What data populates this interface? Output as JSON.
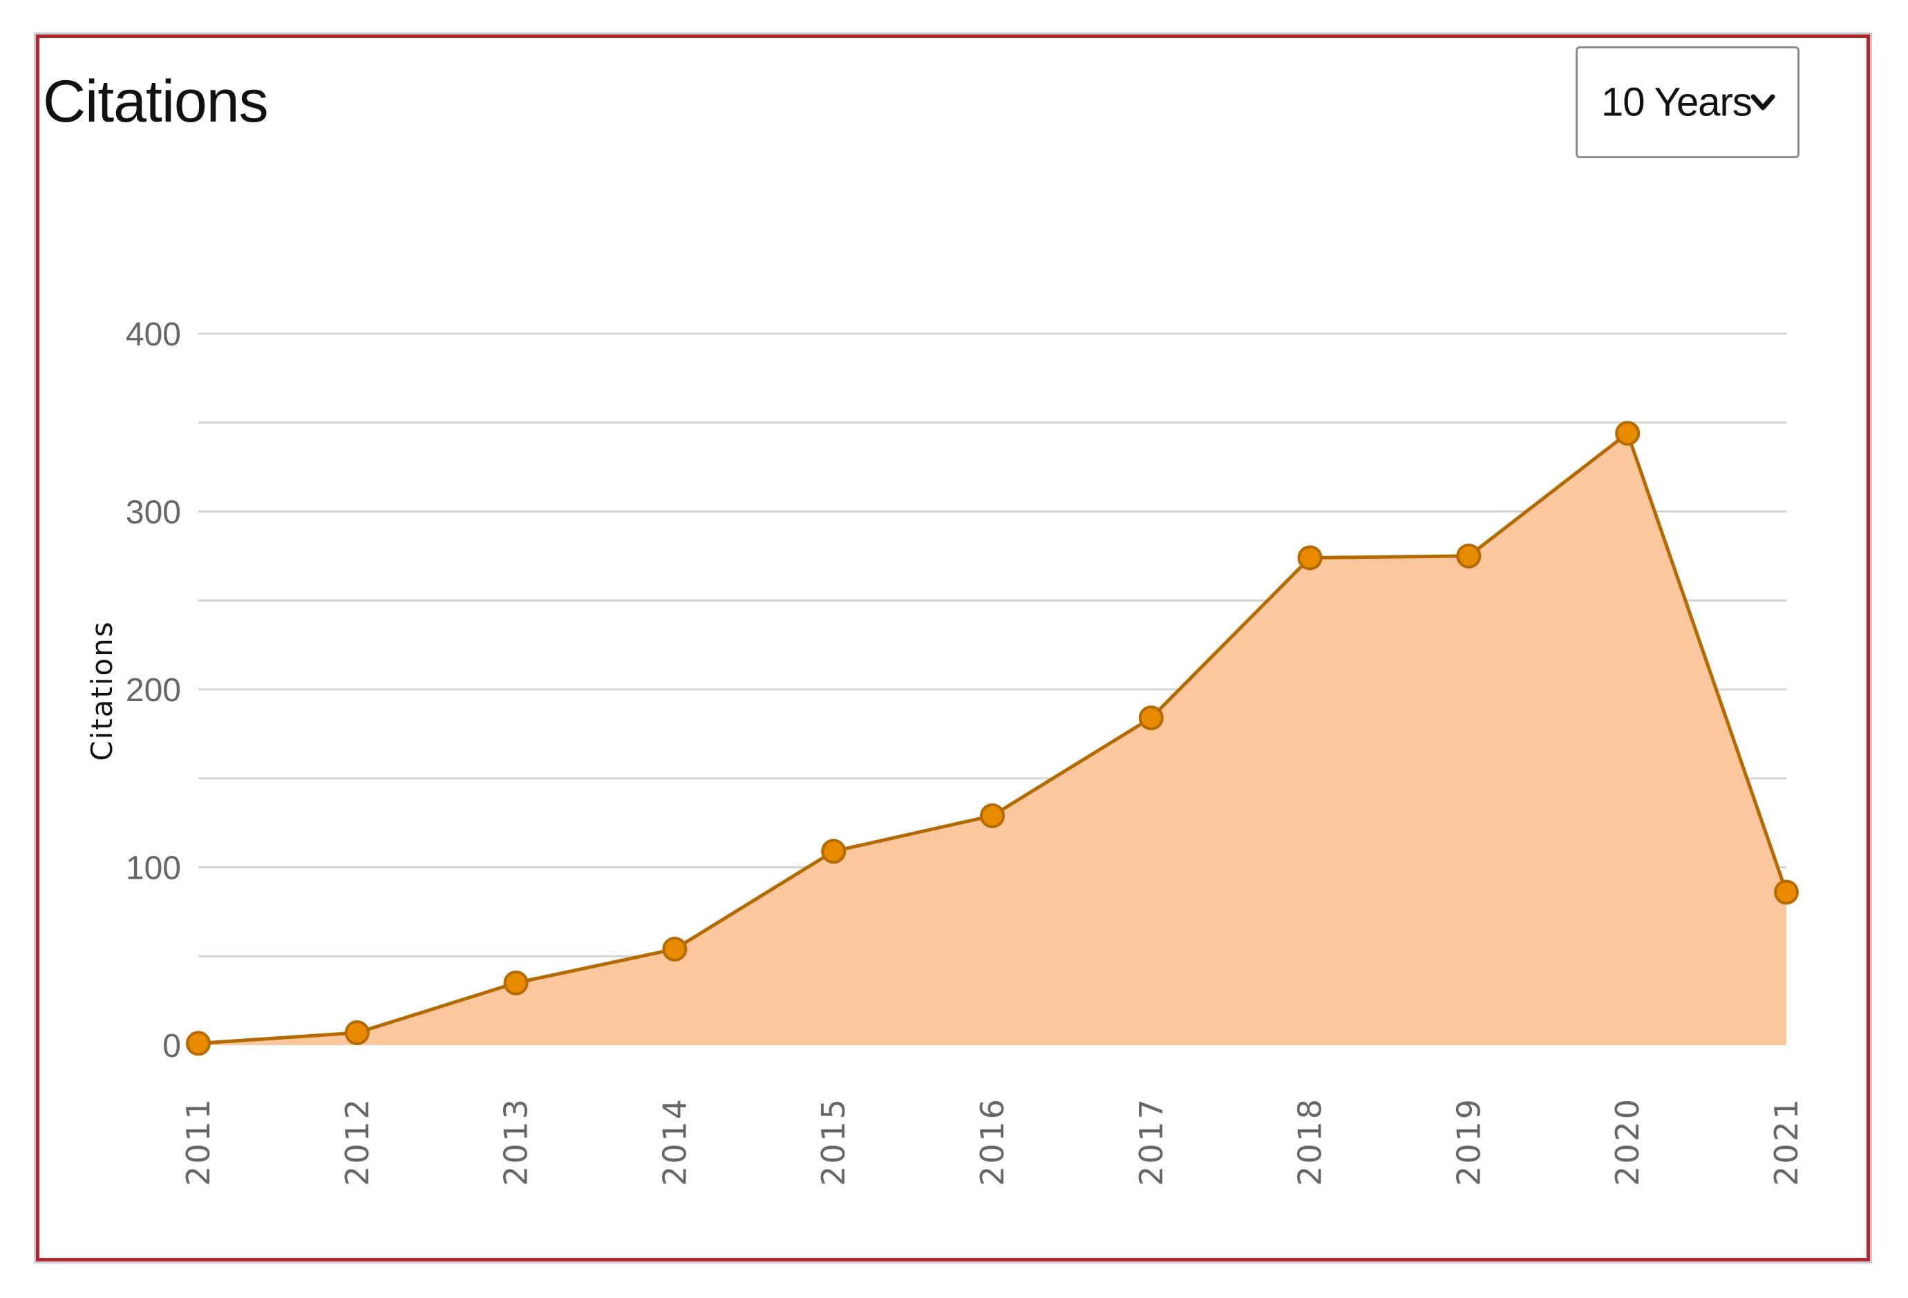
{
  "widget": {
    "title": "Citations"
  },
  "range_selector": {
    "selected": "10 Years",
    "icon": "chevron-down-icon"
  },
  "colors": {
    "frame_border": "#b3262e",
    "line": "#b56a00",
    "marker": "#e88a00",
    "area_fill": "#fcc69e",
    "grid": "#d4d4d4",
    "tick_text": "#666666"
  },
  "chart_data": {
    "type": "area",
    "ylabel": "Citations",
    "xlabel": "",
    "x": [
      "2011",
      "2012",
      "2013",
      "2014",
      "2015",
      "2016",
      "2017",
      "2018",
      "2019",
      "2020",
      "2021"
    ],
    "series": [
      {
        "values": [
          1,
          7,
          35,
          54,
          109,
          129,
          184,
          274,
          275,
          344,
          86
        ]
      }
    ],
    "ylim": [
      0,
      400
    ],
    "yticks": [
      0,
      100,
      200,
      300,
      400
    ],
    "grid_step": 50,
    "grid": true,
    "markers": true
  }
}
